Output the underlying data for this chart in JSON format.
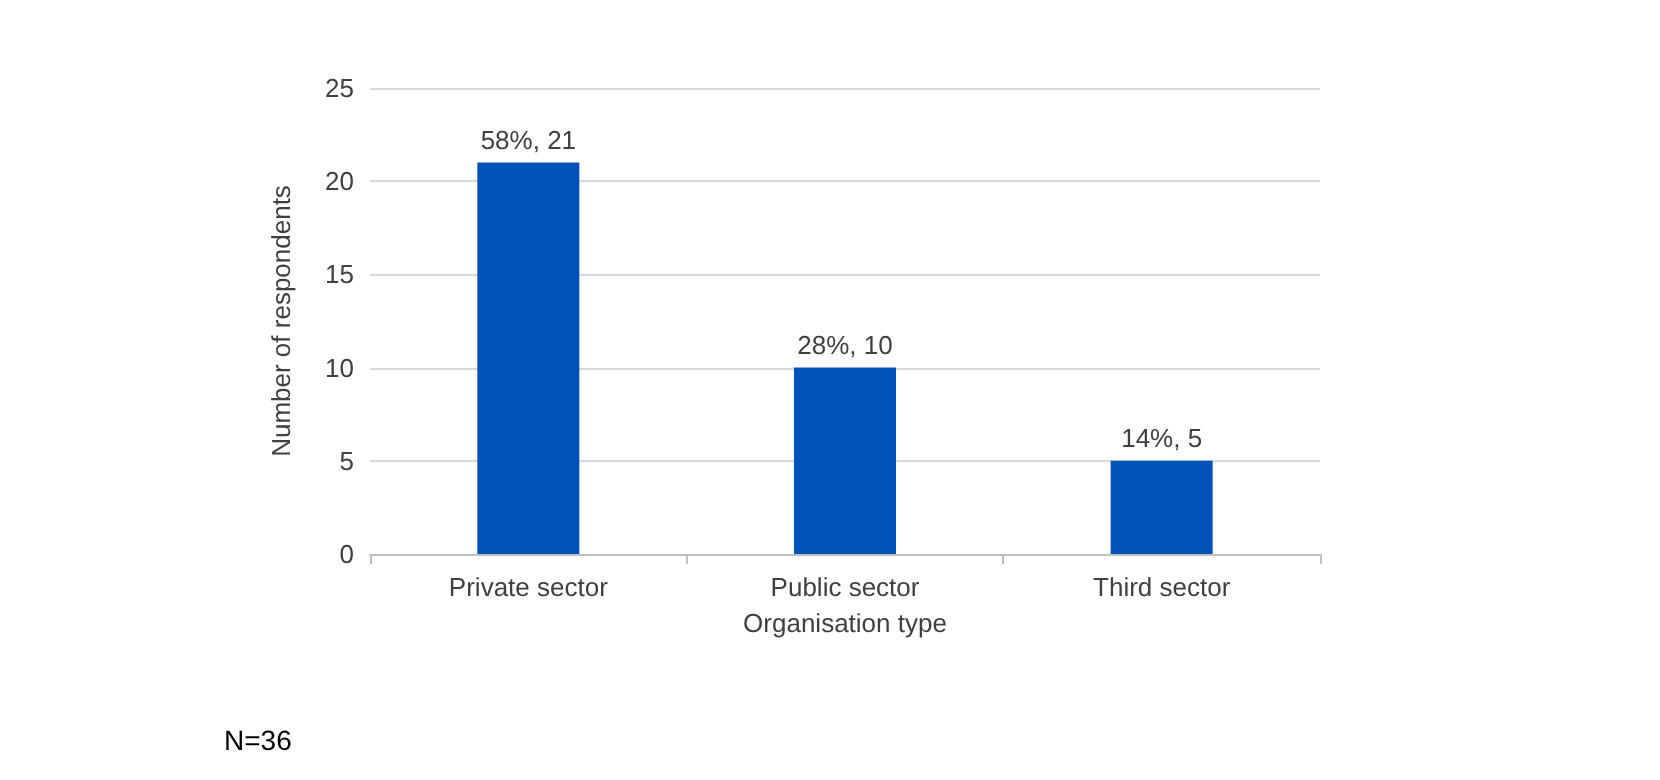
{
  "chart_data": {
    "type": "bar",
    "xlabel": "Organisation type",
    "ylabel": "Number of respondents",
    "categories": [
      "Private sector",
      "Public sector",
      "Third sector"
    ],
    "values": [
      21,
      10,
      5
    ],
    "color": "#0052b8",
    "value_labels": [
      "58%, 21",
      "28%, 10",
      "14%, 5"
    ],
    "ylim": [
      0,
      25
    ],
    "yticks": [
      0,
      5,
      10,
      15,
      20,
      25
    ],
    "grid": "y",
    "annotations": [
      "N=36"
    ]
  }
}
